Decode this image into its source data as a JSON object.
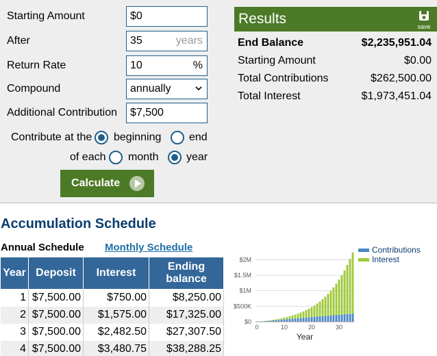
{
  "form": {
    "starting_amount_label": "Starting Amount",
    "starting_amount_value": "$0",
    "after_label": "After",
    "after_value": "35",
    "after_unit": "years",
    "return_rate_label": "Return Rate",
    "return_rate_value": "10",
    "return_rate_unit": "%",
    "compound_label": "Compound",
    "compound_value": "annually",
    "additional_label": "Additional Contribution",
    "additional_value": "$7,500",
    "contribute_label": "Contribute at the",
    "timing_options": [
      "beginning",
      "end"
    ],
    "timing_selected": "beginning",
    "each_label": "of each",
    "period_options": [
      "month",
      "year"
    ],
    "period_selected": "year",
    "calculate_label": "Calculate"
  },
  "results": {
    "title": "Results",
    "save_label": "save",
    "rows": [
      {
        "label": "End Balance",
        "value": "$2,235,951.04"
      },
      {
        "label": "Starting Amount",
        "value": "$0.00"
      },
      {
        "label": "Total Contributions",
        "value": "$262,500.00"
      },
      {
        "label": "Total Interest",
        "value": "$1,973,451.04"
      }
    ]
  },
  "schedule": {
    "title": "Accumulation Schedule",
    "tab_annual": "Annual Schedule",
    "tab_monthly": "Monthly Schedule",
    "columns": [
      "Year",
      "Deposit",
      "Interest",
      "Ending balance"
    ],
    "rows": [
      [
        "1",
        "$7,500.00",
        "$750.00",
        "$8,250.00"
      ],
      [
        "2",
        "$7,500.00",
        "$1,575.00",
        "$17,325.00"
      ],
      [
        "3",
        "$7,500.00",
        "$2,482.50",
        "$27,307.50"
      ],
      [
        "4",
        "$7,500.00",
        "$3,480.75",
        "$38,288.25"
      ]
    ]
  },
  "chart_data": {
    "type": "bar",
    "stacked": true,
    "xlabel": "Year",
    "ylabel": "",
    "ylim": [
      0,
      2250000
    ],
    "x_ticks": [
      "0",
      "10",
      "20",
      "30"
    ],
    "y_ticks": [
      "$0",
      "$500K",
      "$1M",
      "$1.5M",
      "$2M"
    ],
    "y_tick_values": [
      0,
      500000,
      1000000,
      1500000,
      2000000
    ],
    "legend_position": "top-right",
    "grid": true,
    "series": [
      {
        "name": "Contributions",
        "color": "#4a86c8",
        "values": [
          7500,
          15000,
          22500,
          30000,
          37500,
          45000,
          52500,
          60000,
          67500,
          75000,
          82500,
          90000,
          97500,
          105000,
          112500,
          120000,
          127500,
          135000,
          142500,
          150000,
          157500,
          165000,
          172500,
          180000,
          187500,
          195000,
          202500,
          210000,
          217500,
          225000,
          232500,
          240000,
          247500,
          255000,
          262500
        ]
      },
      {
        "name": "Interest",
        "color": "#9fc93c",
        "values": [
          750,
          2325,
          4808,
          8288,
          12867,
          18653,
          25769,
          34346,
          44530,
          56484,
          70382,
          86419,
          104811,
          125792,
          149621,
          176583,
          206991,
          241191,
          279560,
          322516,
          370518,
          424069,
          483726,
          550099,
          623859,
          705744,
          796570,
          897227,
          1008705,
          1132076,
          1268530,
          1419383,
          1586072,
          1770184,
          1973451
        ]
      }
    ]
  }
}
